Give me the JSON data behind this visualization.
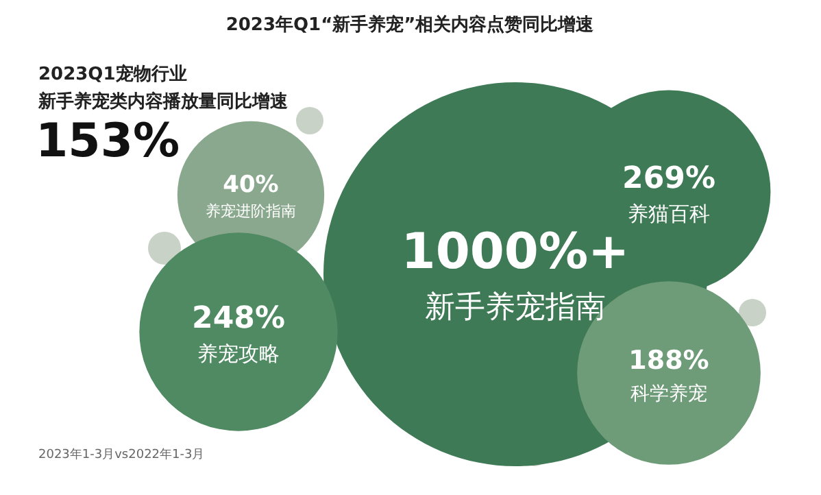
{
  "chart_data": {
    "type": "other",
    "title": "2023年Q1“新手养宠”相关内容点赞同比增速",
    "categories": [
      "新手养宠指南",
      "养宠进阶指南",
      "养宠攻略",
      "养猫百科",
      "科学养宠"
    ],
    "values": [
      1000,
      40,
      248,
      269,
      188
    ],
    "value_labels": [
      "1000%+",
      "40%",
      "248%",
      "269%",
      "188%"
    ],
    "colors": [
      "#3f7a56",
      "#8aa88e",
      "#4f8a63",
      "#3f7a56",
      "#6e9b78"
    ],
    "annotations": [
      "2023Q1宠物行业",
      "新手养宠类内容播放量同比增速",
      "153%",
      "2023年1-3月vs2022年1-3月"
    ]
  }
}
